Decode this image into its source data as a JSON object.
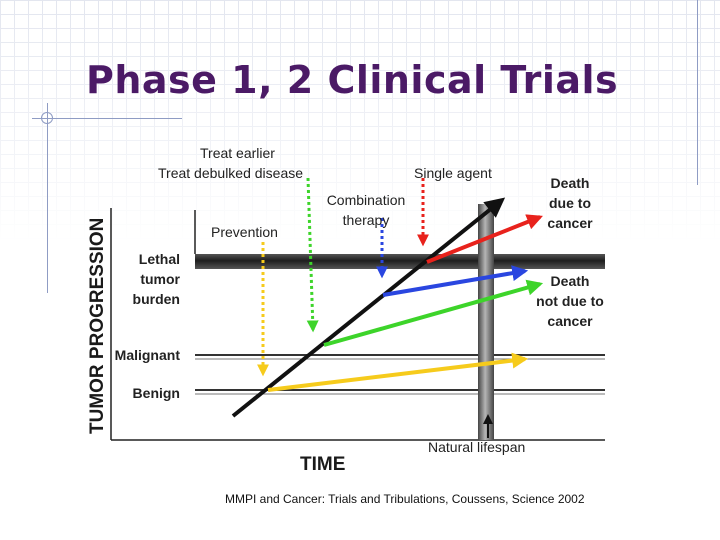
{
  "title": "Phase 1, 2 Clinical Trials",
  "caption": "MMPI and Cancer: Trials and Tribulations, Coussens, Science 2002",
  "diagram": {
    "y_axis_label": "TUMOR PROGRESSION",
    "x_axis_label": "TIME",
    "levels": {
      "lethal": [
        "Lethal",
        "tumor",
        "burden"
      ],
      "malignant": "Malignant",
      "benign": "Benign"
    },
    "interventions": {
      "treat_earlier": "Treat earlier",
      "treat_debulked": "Treat debulked disease",
      "single_agent": "Single agent",
      "combination": [
        "Combination",
        "therapy"
      ],
      "prevention": "Prevention"
    },
    "outcomes": {
      "death_cancer": [
        "Death",
        "due to",
        "cancer"
      ],
      "death_not_cancer": [
        "Death",
        "not due to",
        "cancer"
      ]
    },
    "natural_lifespan": "Natural lifespan",
    "colors": {
      "red": "#e8221c",
      "blue": "#2a46e0",
      "green": "#3dd42a",
      "yellow": "#f6cb1c",
      "black": "#111111",
      "title": "#4b1a66"
    }
  }
}
